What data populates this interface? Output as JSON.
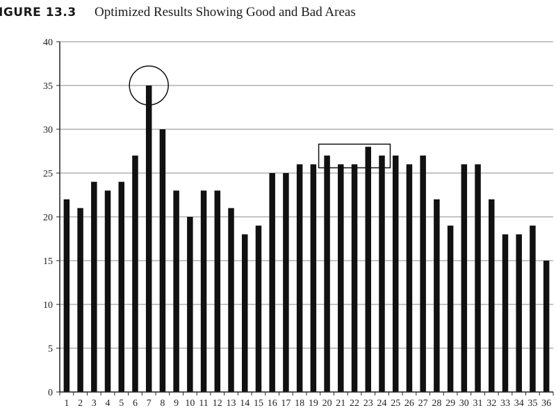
{
  "figure": {
    "label": "IGURE 13.3",
    "title": "Optimized Results Showing Good and Bad Areas"
  },
  "chart_data": {
    "type": "bar",
    "categories": [
      "1",
      "2",
      "3",
      "4",
      "5",
      "6",
      "7",
      "8",
      "9",
      "10",
      "11",
      "12",
      "13",
      "14",
      "15",
      "16",
      "17",
      "18",
      "19",
      "20",
      "21",
      "22",
      "23",
      "24",
      "25",
      "26",
      "27",
      "28",
      "29",
      "30",
      "31",
      "32",
      "33",
      "34",
      "35",
      "36"
    ],
    "values": [
      22,
      21,
      24,
      23,
      24,
      27,
      35,
      30,
      23,
      20,
      23,
      23,
      21,
      18,
      19,
      25,
      25,
      26,
      26,
      27,
      26,
      26,
      28,
      27,
      27,
      26,
      27,
      22,
      19,
      26,
      26,
      22,
      18,
      18,
      19,
      15
    ],
    "ylim": [
      0,
      40
    ],
    "yticks": [
      0,
      5,
      10,
      15,
      20,
      25,
      30,
      35,
      40
    ],
    "grid": true,
    "bar_color": "#111111",
    "annotations": [
      {
        "shape": "circle",
        "category": "7",
        "value": 35
      },
      {
        "shape": "rectangle",
        "from_category": "20",
        "to_category": "24",
        "y_from": 25.6,
        "y_to": 28.3
      }
    ]
  }
}
